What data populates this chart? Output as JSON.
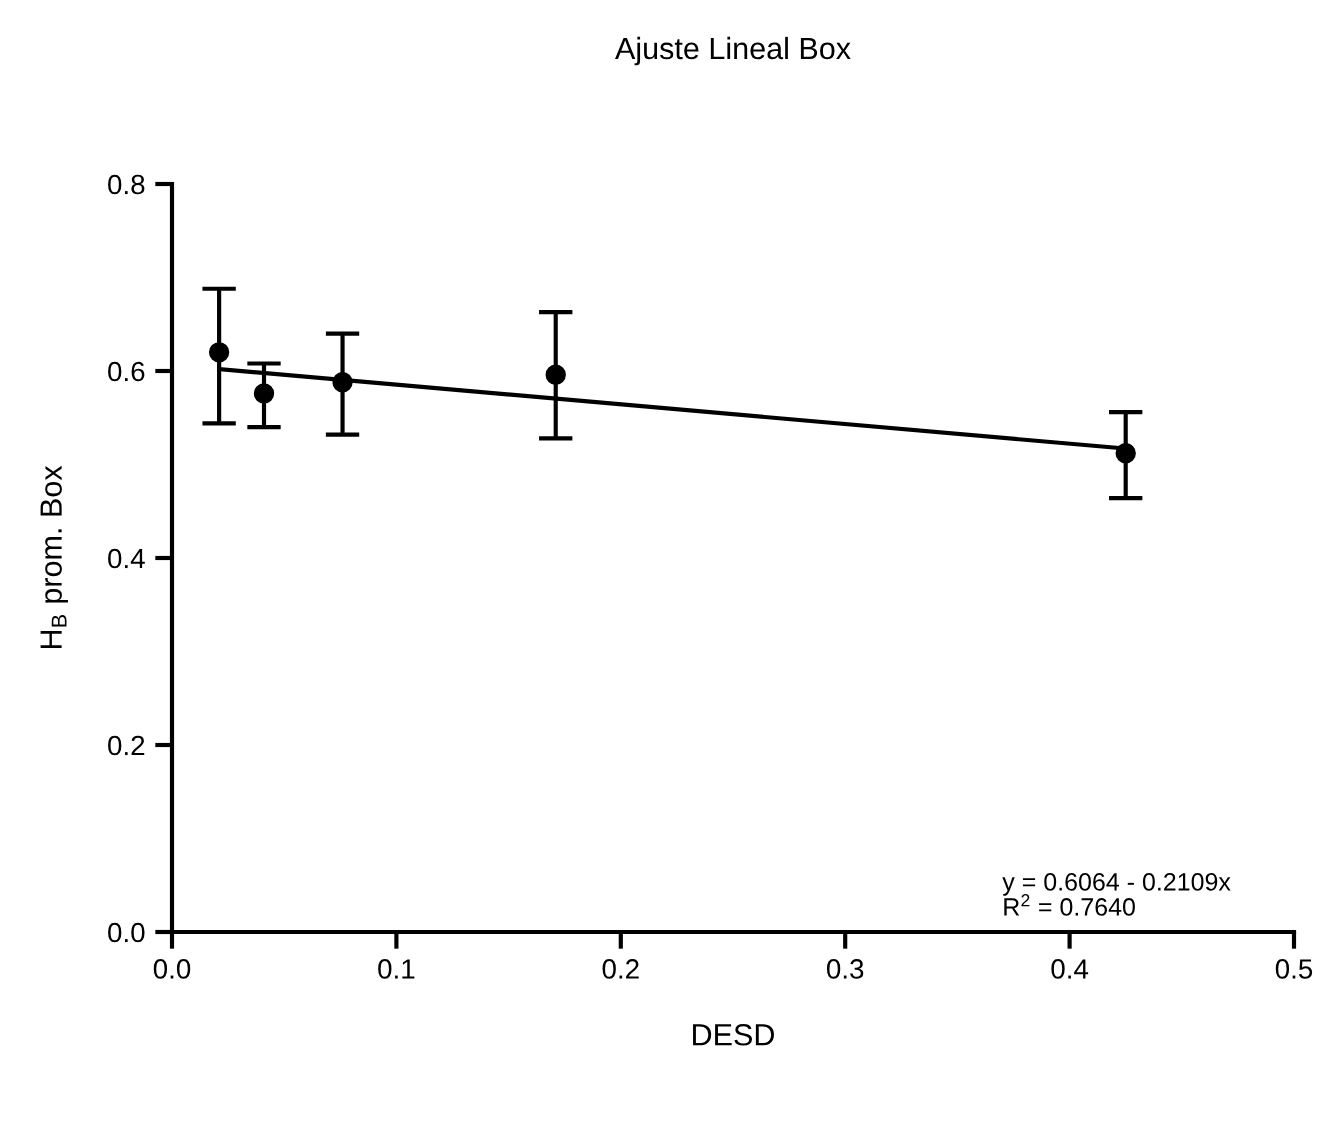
{
  "chart_data": {
    "type": "scatter",
    "title": "Ajuste Lineal Box",
    "xlabel": "DESD",
    "ylabel": "H$_{B}$ prom. Box",
    "x": [
      0.021,
      0.041,
      0.076,
      0.171,
      0.425
    ],
    "series": [
      {
        "color": "#000000",
        "marker": "circle",
        "values": [
          0.62,
          0.576,
          0.588,
          0.596,
          0.512
        ],
        "errors": [
          [
            0.544,
            0.688
          ],
          [
            0.54,
            0.608
          ],
          [
            0.532,
            0.64
          ],
          [
            0.528,
            0.663
          ],
          [
            0.464,
            0.556
          ]
        ]
      },
      {
        "type": "line",
        "color": "#000000",
        "marker": "none",
        "x": [
          0.021,
          0.425
        ],
        "values": [
          0.602,
          0.517
        ]
      }
    ],
    "xlim": [
      0,
      0.5
    ],
    "xticks": [
      {
        "value": 0,
        "label": "0.0"
      },
      0.1,
      0.2,
      0.3,
      0.4,
      0.5
    ],
    "ylim": [
      0,
      0.8
    ],
    "yticks": [
      {
        "value": 0,
        "label": "0.0"
      },
      0.2,
      0.4,
      0.6,
      0.8
    ],
    "grid": false,
    "legend": false,
    "annotations": [
      "y = 0.6064 - 0.2109x\nR$^{2}$ = 0.7640"
    ]
  }
}
